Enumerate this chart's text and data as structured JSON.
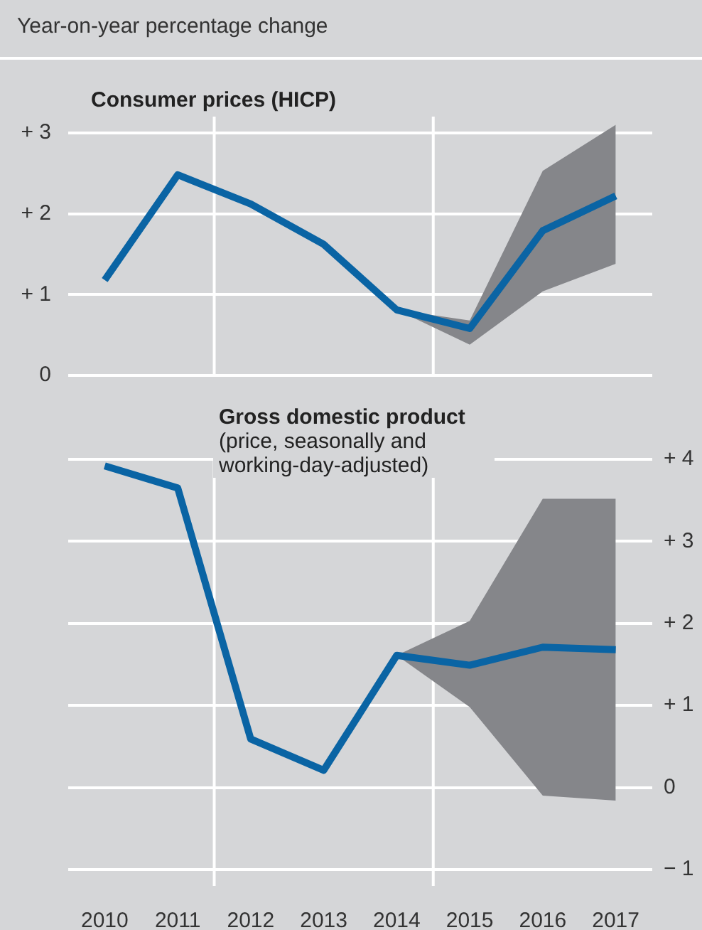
{
  "chart_data": [
    {
      "type": "line",
      "ylabel": "Year-on-year percentage change",
      "title": "Consumer prices (HICP)",
      "x": [
        2010,
        2011,
        2012,
        2013,
        2014,
        2015,
        2016,
        2017
      ],
      "series": [
        {
          "color": "#0a64a4",
          "values": [
            1.18,
            2.48,
            2.12,
            1.62,
            0.81,
            0.58,
            1.79,
            2.22
          ],
          "lower": [
            null,
            null,
            null,
            null,
            0.81,
            0.38,
            1.04,
            1.38
          ],
          "upper": [
            null,
            null,
            null,
            null,
            0.81,
            0.68,
            2.53,
            3.1
          ]
        }
      ],
      "xlim": [
        2009.5,
        2017.5
      ],
      "xticks": [
        2010,
        2011,
        2012,
        2013,
        2014,
        2015,
        2016,
        2017
      ],
      "ylim": [
        0,
        3.2
      ],
      "yticks": [
        0,
        {
          "value": 1,
          "label": "+ 1"
        },
        {
          "value": 2,
          "label": "+ 2"
        },
        {
          "value": 3,
          "label": "+ 3"
        }
      ],
      "grid": "y",
      "tick_labels": "y",
      "ref_lines": [
        {
          "axis": "x",
          "value": 2011.5,
          "color": "#ffffff"
        },
        {
          "axis": "x",
          "value": 2014.5,
          "color": "#ffffff"
        }
      ]
    },
    {
      "type": "line",
      "title": "Gross domestic product",
      "subtitle": "(price, seasonally and working-day-adjusted)",
      "x": [
        2010,
        2011,
        2012,
        2013,
        2014,
        2015,
        2016,
        2017
      ],
      "series": [
        {
          "color": "#0a64a4",
          "axis": "y2",
          "values": [
            3.92,
            3.65,
            0.59,
            0.21,
            1.61,
            1.49,
            1.71,
            1.68
          ],
          "lower": [
            null,
            null,
            null,
            null,
            1.61,
            0.98,
            -0.1,
            -0.16
          ],
          "upper": [
            null,
            null,
            null,
            null,
            1.61,
            2.03,
            3.52,
            3.52
          ]
        }
      ],
      "xlim": [
        2009.5,
        2017.5
      ],
      "xticks": [
        2010,
        2011,
        2012,
        2013,
        2014,
        2015,
        2016,
        2017
      ],
      "y2lim": [
        -1.2,
        4
      ],
      "y2ticks": [
        {
          "value": -1,
          "label": "− 1"
        },
        0,
        {
          "value": 1,
          "label": "+ 1"
        },
        {
          "value": 2,
          "label": "+ 2"
        },
        {
          "value": 3,
          "label": "+ 3"
        },
        {
          "value": 4,
          "label": "+ 4"
        }
      ],
      "grid": "y",
      "ref_lines": [
        {
          "axis": "x",
          "value": 2011.5,
          "color": "#ffffff"
        },
        {
          "axis": "x",
          "value": 2014.5,
          "color": "#ffffff"
        }
      ]
    }
  ]
}
